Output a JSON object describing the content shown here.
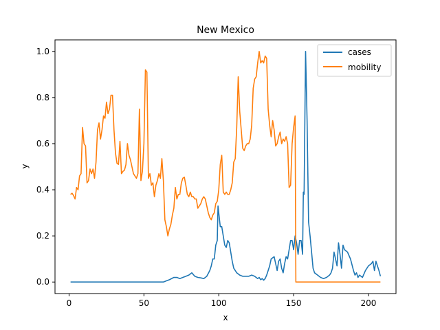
{
  "chart_data": {
    "type": "line",
    "title": "New Mexico",
    "xlabel": "x",
    "ylabel": "y",
    "xlim": [
      -9.4,
      218.4
    ],
    "ylim": [
      -0.05,
      1.05
    ],
    "xticks": [
      0,
      50,
      100,
      150,
      200
    ],
    "xtick_labels": [
      "0",
      "50",
      "100",
      "150",
      "200"
    ],
    "yticks": [
      0.0,
      0.2,
      0.4,
      0.6,
      0.8,
      1.0
    ],
    "ytick_labels": [
      "0.0",
      "0.2",
      "0.4",
      "0.6",
      "0.8",
      "1.0"
    ],
    "grid": false,
    "legend": "top-right",
    "series": [
      {
        "name": "cases",
        "color": "#1f77b4",
        "points": [
          [
            1,
            0
          ],
          [
            10,
            0
          ],
          [
            20,
            0
          ],
          [
            30,
            0
          ],
          [
            40,
            0
          ],
          [
            50,
            0
          ],
          [
            60,
            0
          ],
          [
            63,
            0
          ],
          [
            65,
            0.005
          ],
          [
            67,
            0.01
          ],
          [
            70,
            0.02
          ],
          [
            72,
            0.02
          ],
          [
            74,
            0.015
          ],
          [
            76,
            0.02
          ],
          [
            78,
            0.025
          ],
          [
            80,
            0.03
          ],
          [
            82,
            0.04
          ],
          [
            84,
            0.025
          ],
          [
            86,
            0.02
          ],
          [
            88,
            0.018
          ],
          [
            90,
            0.015
          ],
          [
            92,
            0.025
          ],
          [
            94,
            0.05
          ],
          [
            95,
            0.07
          ],
          [
            96,
            0.1
          ],
          [
            97,
            0.1
          ],
          [
            98,
            0.16
          ],
          [
            99,
            0.18
          ],
          [
            99.5,
            0.33
          ],
          [
            100,
            0.3
          ],
          [
            101,
            0.24
          ],
          [
            102,
            0.24
          ],
          [
            103,
            0.2
          ],
          [
            104,
            0.16
          ],
          [
            105,
            0.15
          ],
          [
            106,
            0.18
          ],
          [
            107,
            0.17
          ],
          [
            108,
            0.13
          ],
          [
            109,
            0.09
          ],
          [
            110,
            0.06
          ],
          [
            112,
            0.04
          ],
          [
            114,
            0.03
          ],
          [
            116,
            0.025
          ],
          [
            118,
            0.025
          ],
          [
            120,
            0.025
          ],
          [
            122,
            0.03
          ],
          [
            124,
            0.025
          ],
          [
            126,
            0.015
          ],
          [
            127,
            0.02
          ],
          [
            128,
            0.01
          ],
          [
            129,
            0.015
          ],
          [
            130,
            0.008
          ],
          [
            131,
            0.015
          ],
          [
            132,
            0.03
          ],
          [
            133,
            0.05
          ],
          [
            134,
            0.07
          ],
          [
            135,
            0.1
          ],
          [
            136,
            0.105
          ],
          [
            137,
            0.11
          ],
          [
            138,
            0.08
          ],
          [
            139,
            0.05
          ],
          [
            140,
            0.09
          ],
          [
            141,
            0.1
          ],
          [
            142,
            0.06
          ],
          [
            143,
            0.04
          ],
          [
            144,
            0.08
          ],
          [
            145,
            0.11
          ],
          [
            146,
            0.1
          ],
          [
            147,
            0.14
          ],
          [
            148,
            0.18
          ],
          [
            149,
            0.18
          ],
          [
            150,
            0.14
          ],
          [
            151,
            0.2
          ],
          [
            152,
            0.17
          ],
          [
            153,
            0.12
          ],
          [
            154,
            0.18
          ],
          [
            155,
            0.18
          ],
          [
            156,
            0.12
          ],
          [
            156.5,
            0.39
          ],
          [
            157,
            0.38
          ],
          [
            158,
            1.0
          ],
          [
            159,
            0.7
          ],
          [
            160,
            0.26
          ],
          [
            161,
            0.2
          ],
          [
            162,
            0.13
          ],
          [
            163,
            0.06
          ],
          [
            164,
            0.04
          ],
          [
            166,
            0.03
          ],
          [
            168,
            0.02
          ],
          [
            170,
            0.015
          ],
          [
            172,
            0.02
          ],
          [
            174,
            0.03
          ],
          [
            175,
            0.04
          ],
          [
            176,
            0.06
          ],
          [
            177,
            0.13
          ],
          [
            178,
            0.1
          ],
          [
            179,
            0.07
          ],
          [
            180,
            0.17
          ],
          [
            181,
            0.12
          ],
          [
            182,
            0.06
          ],
          [
            183,
            0.16
          ],
          [
            184,
            0.14
          ],
          [
            186,
            0.13
          ],
          [
            188,
            0.1
          ],
          [
            190,
            0.05
          ],
          [
            191,
            0.03
          ],
          [
            192,
            0.04
          ],
          [
            193,
            0.02
          ],
          [
            194,
            0.03
          ],
          [
            196,
            0.02
          ],
          [
            198,
            0.05
          ],
          [
            200,
            0.07
          ],
          [
            202,
            0.08
          ],
          [
            203,
            0.09
          ],
          [
            204,
            0.05
          ],
          [
            205,
            0.09
          ],
          [
            206,
            0.07
          ],
          [
            207,
            0.05
          ],
          [
            208,
            0.025
          ]
        ]
      },
      {
        "name": "mobility",
        "color": "#ff7f0e",
        "points": [
          [
            1,
            0.38
          ],
          [
            2,
            0.385
          ],
          [
            3,
            0.375
          ],
          [
            4,
            0.36
          ],
          [
            5,
            0.41
          ],
          [
            6,
            0.4
          ],
          [
            7,
            0.46
          ],
          [
            8,
            0.47
          ],
          [
            9,
            0.67
          ],
          [
            10,
            0.6
          ],
          [
            11,
            0.59
          ],
          [
            12,
            0.43
          ],
          [
            13,
            0.44
          ],
          [
            14,
            0.49
          ],
          [
            15,
            0.47
          ],
          [
            16,
            0.49
          ],
          [
            17,
            0.45
          ],
          [
            18,
            0.52
          ],
          [
            19,
            0.66
          ],
          [
            20,
            0.69
          ],
          [
            21,
            0.62
          ],
          [
            22,
            0.66
          ],
          [
            23,
            0.72
          ],
          [
            24,
            0.71
          ],
          [
            25,
            0.78
          ],
          [
            26,
            0.73
          ],
          [
            27,
            0.75
          ],
          [
            28,
            0.81
          ],
          [
            29,
            0.81
          ],
          [
            30,
            0.66
          ],
          [
            31,
            0.56
          ],
          [
            32,
            0.515
          ],
          [
            33,
            0.51
          ],
          [
            34,
            0.61
          ],
          [
            35,
            0.47
          ],
          [
            36,
            0.48
          ],
          [
            37,
            0.485
          ],
          [
            38,
            0.51
          ],
          [
            39,
            0.6
          ],
          [
            40,
            0.55
          ],
          [
            41,
            0.53
          ],
          [
            42,
            0.5
          ],
          [
            43,
            0.47
          ],
          [
            44,
            0.46
          ],
          [
            45,
            0.45
          ],
          [
            46,
            0.47
          ],
          [
            47,
            0.75
          ],
          [
            48,
            0.44
          ],
          [
            49,
            0.48
          ],
          [
            50,
            0.6
          ],
          [
            51,
            0.92
          ],
          [
            52,
            0.91
          ],
          [
            53,
            0.45
          ],
          [
            54,
            0.47
          ],
          [
            55,
            0.42
          ],
          [
            56,
            0.43
          ],
          [
            57,
            0.37
          ],
          [
            58,
            0.42
          ],
          [
            59,
            0.44
          ],
          [
            60,
            0.47
          ],
          [
            61,
            0.45
          ],
          [
            62,
            0.535
          ],
          [
            63,
            0.44
          ],
          [
            64,
            0.27
          ],
          [
            65,
            0.24
          ],
          [
            66,
            0.2
          ],
          [
            67,
            0.23
          ],
          [
            68,
            0.25
          ],
          [
            69,
            0.29
          ],
          [
            70,
            0.32
          ],
          [
            71,
            0.41
          ],
          [
            72,
            0.36
          ],
          [
            73,
            0.38
          ],
          [
            74,
            0.38
          ],
          [
            75,
            0.43
          ],
          [
            76,
            0.45
          ],
          [
            77,
            0.455
          ],
          [
            78,
            0.42
          ],
          [
            79,
            0.38
          ],
          [
            80,
            0.37
          ],
          [
            81,
            0.39
          ],
          [
            82,
            0.37
          ],
          [
            83,
            0.37
          ],
          [
            84,
            0.36
          ],
          [
            85,
            0.36
          ],
          [
            86,
            0.32
          ],
          [
            87,
            0.33
          ],
          [
            88,
            0.34
          ],
          [
            89,
            0.36
          ],
          [
            90,
            0.37
          ],
          [
            91,
            0.36
          ],
          [
            92,
            0.33
          ],
          [
            93,
            0.3
          ],
          [
            94,
            0.28
          ],
          [
            95,
            0.27
          ],
          [
            96,
            0.29
          ],
          [
            97,
            0.3
          ],
          [
            98,
            0.34
          ],
          [
            99,
            0.35
          ],
          [
            100,
            0.4
          ],
          [
            101,
            0.51
          ],
          [
            102,
            0.55
          ],
          [
            103,
            0.39
          ],
          [
            104,
            0.38
          ],
          [
            105,
            0.39
          ],
          [
            106,
            0.38
          ],
          [
            107,
            0.38
          ],
          [
            108,
            0.4
          ],
          [
            109,
            0.43
          ],
          [
            110,
            0.52
          ],
          [
            111,
            0.535
          ],
          [
            112,
            0.67
          ],
          [
            113,
            0.89
          ],
          [
            114,
            0.74
          ],
          [
            115,
            0.66
          ],
          [
            116,
            0.58
          ],
          [
            117,
            0.57
          ],
          [
            118,
            0.59
          ],
          [
            119,
            0.6
          ],
          [
            120,
            0.6
          ],
          [
            121,
            0.62
          ],
          [
            122,
            0.68
          ],
          [
            123,
            0.84
          ],
          [
            124,
            0.88
          ],
          [
            125,
            0.89
          ],
          [
            126,
            0.95
          ],
          [
            127,
            1.0
          ],
          [
            128,
            0.95
          ],
          [
            129,
            0.96
          ],
          [
            130,
            0.95
          ],
          [
            131,
            0.98
          ],
          [
            132,
            0.97
          ],
          [
            133,
            0.75
          ],
          [
            134,
            0.68
          ],
          [
            135,
            0.63
          ],
          [
            136,
            0.7
          ],
          [
            137,
            0.66
          ],
          [
            138,
            0.59
          ],
          [
            139,
            0.6
          ],
          [
            140,
            0.63
          ],
          [
            141,
            0.65
          ],
          [
            142,
            0.6
          ],
          [
            143,
            0.62
          ],
          [
            144,
            0.61
          ],
          [
            145,
            0.63
          ],
          [
            146,
            0.6
          ],
          [
            147,
            0.41
          ],
          [
            148,
            0.42
          ],
          [
            149,
            0.6
          ],
          [
            150,
            0.67
          ],
          [
            151,
            0.72
          ],
          [
            151.5,
            0.0
          ],
          [
            155,
            0.0
          ],
          [
            160,
            0.0
          ],
          [
            170,
            0.0
          ],
          [
            180,
            0.0
          ],
          [
            190,
            0.0
          ],
          [
            200,
            0.0
          ],
          [
            208,
            0.0
          ]
        ]
      }
    ]
  }
}
